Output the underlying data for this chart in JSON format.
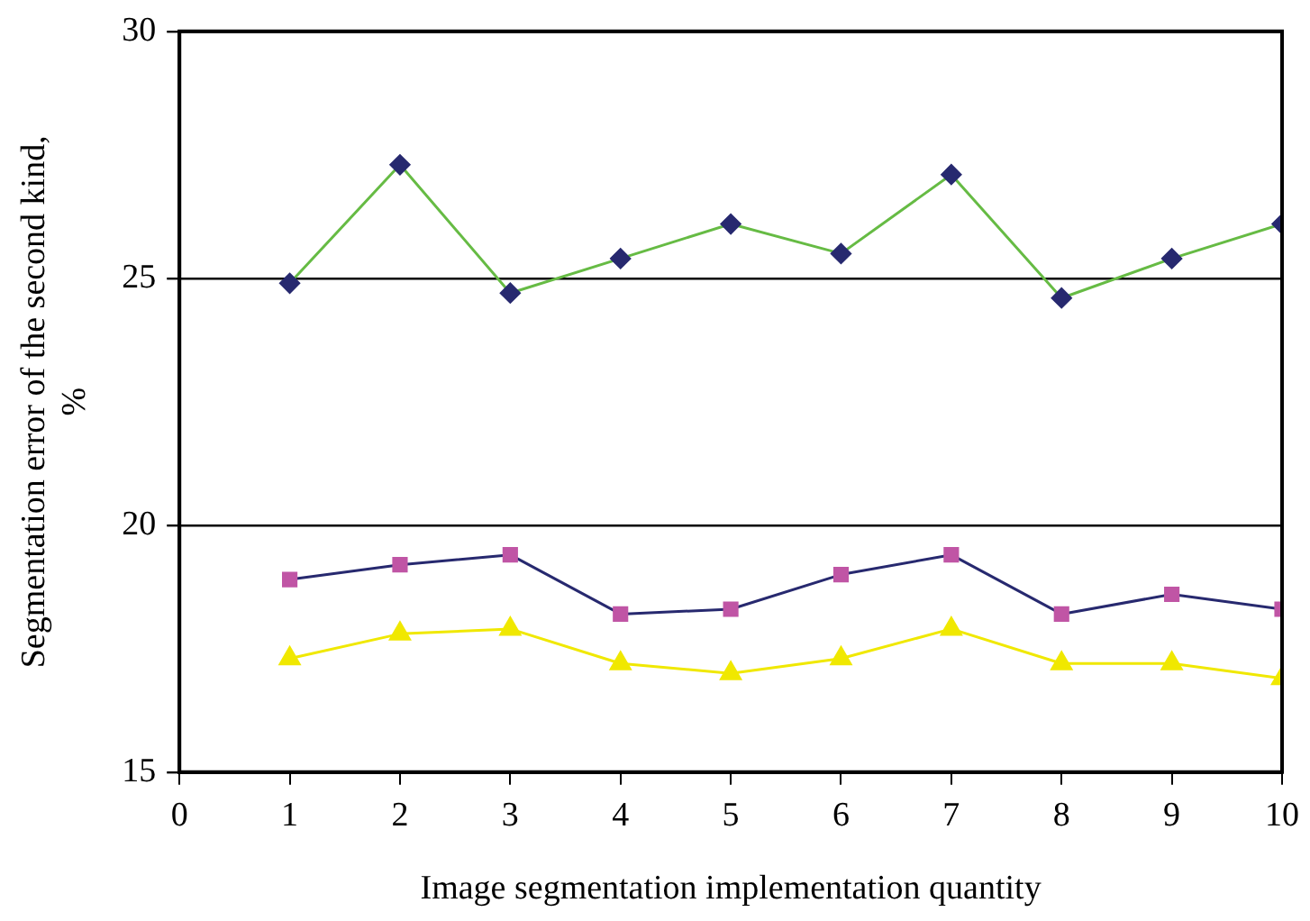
{
  "chart_data": {
    "type": "line",
    "xlabel": "Image segmentation implementation quantity",
    "ylabel": "Segmentation error of the second kind, %",
    "x": [
      1,
      2,
      3,
      4,
      5,
      6,
      7,
      8,
      9,
      10
    ],
    "series": [
      {
        "color": "#66bb44",
        "marker": "diamond",
        "colors": [
          "#27296f",
          "#27296f",
          "#27296f",
          "#27296f",
          "#27296f",
          "#27296f",
          "#27296f",
          "#27296f",
          "#27296f",
          "#27296f"
        ],
        "values": [
          24.9,
          27.3,
          24.7,
          25.4,
          26.1,
          25.5,
          27.1,
          24.6,
          25.4,
          26.1
        ]
      },
      {
        "color": "#27296f",
        "marker": "square",
        "colors": [
          "#c055a5",
          "#c055a5",
          "#c055a5",
          "#c055a5",
          "#c055a5",
          "#c055a5",
          "#c055a5",
          "#c055a5",
          "#c055a5",
          "#c055a5"
        ],
        "values": [
          18.9,
          19.2,
          19.4,
          18.2,
          18.3,
          19.0,
          19.4,
          18.2,
          18.6,
          18.3
        ]
      },
      {
        "color": "#f0e800",
        "marker": "triangle",
        "colors": [
          "#f0e800",
          "#f0e800",
          "#f0e800",
          "#f0e800",
          "#f0e800",
          "#f0e800",
          "#f0e800",
          "#f0e800",
          "#f0e800",
          "#f0e800"
        ],
        "values": [
          17.3,
          17.8,
          17.9,
          17.2,
          17.0,
          17.3,
          17.9,
          17.2,
          17.2,
          16.9
        ]
      }
    ],
    "xlim": [
      0,
      10
    ],
    "xticks": [
      0,
      1,
      2,
      3,
      4,
      5,
      6,
      7,
      8,
      9,
      10
    ],
    "ylim": [
      15,
      30
    ],
    "yticks": [
      15,
      20,
      25,
      30
    ],
    "grid": "y",
    "legend": false
  }
}
